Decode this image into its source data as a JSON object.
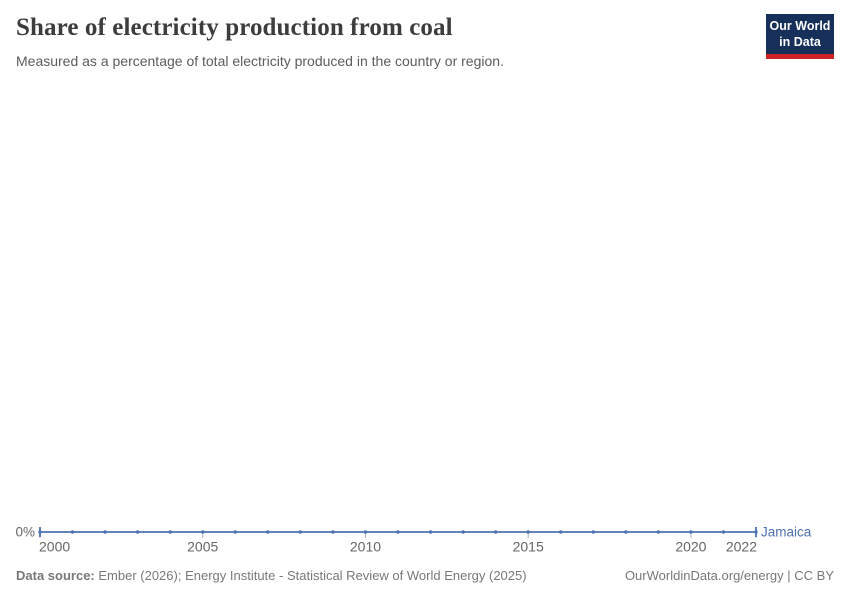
{
  "header": {
    "title": "Share of electricity production from coal",
    "subtitle": "Measured as a percentage of total electricity produced in the country or region.",
    "logo": {
      "line1": "Our World",
      "line2": "in Data"
    }
  },
  "colors": {
    "line": "#4d72b0",
    "logo_navy": "#16305a",
    "logo_red": "#cd2328",
    "axis_text": "#666666",
    "tick_mark": "#9fb0cc"
  },
  "chart_data": {
    "type": "line",
    "title": "Share of electricity production from coal",
    "xlabel": "",
    "ylabel": "",
    "grid": false,
    "x_axis_ticks": [
      2000,
      2005,
      2010,
      2015,
      2020,
      2022
    ],
    "y_axis_ticks": [
      "0%"
    ],
    "y_axis_label_shown": "0%",
    "xlim": [
      2000,
      2022
    ],
    "ylim": [
      0,
      0
    ],
    "entity_label_position": "right-of-line-end",
    "series": [
      {
        "name": "Jamaica",
        "color": "#4d72b0",
        "x": [
          2000,
          2001,
          2002,
          2003,
          2004,
          2005,
          2006,
          2007,
          2008,
          2009,
          2010,
          2011,
          2012,
          2013,
          2014,
          2015,
          2016,
          2017,
          2018,
          2019,
          2020,
          2021,
          2022
        ],
        "values": [
          0,
          0,
          0,
          0,
          0,
          0,
          0,
          0,
          0,
          0,
          0,
          0,
          0,
          0,
          0,
          0,
          0,
          0,
          0,
          0,
          0,
          0,
          0
        ]
      }
    ]
  },
  "footer": {
    "source_label": "Data source:",
    "source_text": " Ember (2026); Energy Institute - Statistical Review of World Energy (2025)",
    "right_text": "OurWorldinData.org/energy | CC BY"
  }
}
